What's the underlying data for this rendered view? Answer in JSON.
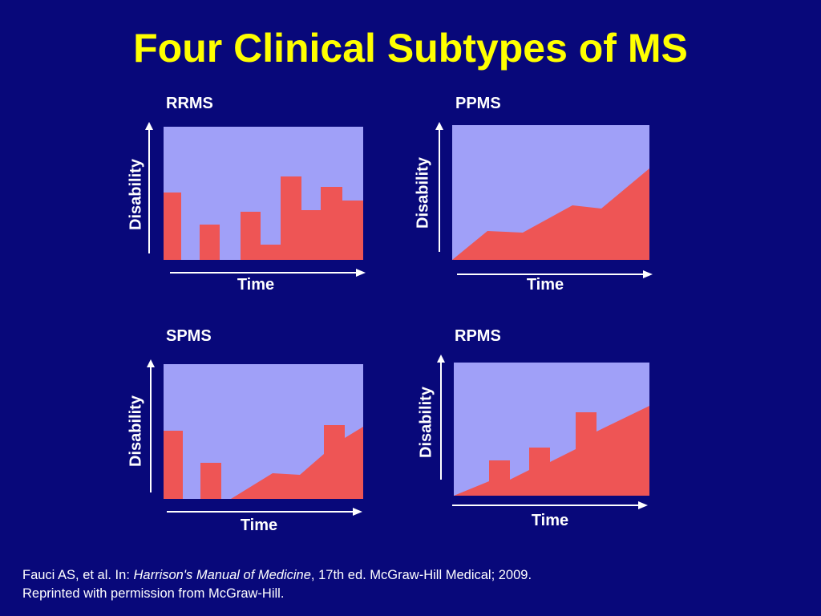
{
  "title": "Four Clinical Subtypes of MS",
  "colors": {
    "background": "#08087a",
    "title": "#ffff00",
    "plot_bg": "#a0a0f8",
    "area": "#ee5555",
    "text": "#ffffff"
  },
  "panels": [
    {
      "id": "rrms",
      "label": "RRMS",
      "ylabel": "Disability",
      "xlabel": "Time"
    },
    {
      "id": "ppms",
      "label": "PPMS",
      "ylabel": "Disability",
      "xlabel": "Time"
    },
    {
      "id": "spms",
      "label": "SPMS",
      "ylabel": "Disability",
      "xlabel": "Time"
    },
    {
      "id": "rpms",
      "label": "RPMS",
      "ylabel": "Disability",
      "xlabel": "Time"
    }
  ],
  "footer": {
    "line1_prefix": "Fauci AS, et al. In: ",
    "line1_italic": "Harrison's Manual of Medicine",
    "line1_suffix": ", 17th ed. McGraw-Hill Medical; 2009.",
    "line2": "Reprinted with permission from McGraw-Hill."
  }
}
